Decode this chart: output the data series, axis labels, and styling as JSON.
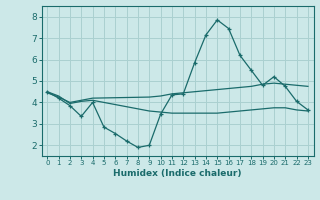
{
  "xlabel": "Humidex (Indice chaleur)",
  "ylabel": "",
  "background_color": "#cce8e8",
  "grid_color": "#aad0d0",
  "line_color": "#1a6b6b",
  "xlim": [
    -0.5,
    23.5
  ],
  "ylim": [
    1.5,
    8.5
  ],
  "yticks": [
    2,
    3,
    4,
    5,
    6,
    7,
    8
  ],
  "xticks": [
    0,
    1,
    2,
    3,
    4,
    5,
    6,
    7,
    8,
    9,
    10,
    11,
    12,
    13,
    14,
    15,
    16,
    17,
    18,
    19,
    20,
    21,
    22,
    23
  ],
  "line1_x": [
    0,
    1,
    2,
    3,
    4,
    5,
    6,
    7,
    8,
    9,
    10,
    11,
    12,
    13,
    14,
    15,
    16,
    17,
    18,
    19,
    20,
    21,
    22,
    23
  ],
  "line1_y": [
    4.5,
    4.2,
    3.85,
    3.35,
    4.0,
    2.85,
    2.55,
    2.2,
    1.9,
    2.0,
    3.45,
    4.35,
    4.4,
    5.85,
    7.15,
    7.85,
    7.45,
    6.2,
    5.5,
    4.8,
    5.2,
    4.75,
    4.05,
    3.65
  ],
  "line2_x": [
    0,
    1,
    2,
    3,
    4,
    9,
    10,
    11,
    12,
    13,
    14,
    15,
    16,
    17,
    18,
    19,
    20,
    21,
    22,
    23
  ],
  "line2_y": [
    4.5,
    4.3,
    3.95,
    4.05,
    4.1,
    3.6,
    3.55,
    3.5,
    3.5,
    3.5,
    3.5,
    3.5,
    3.55,
    3.6,
    3.65,
    3.7,
    3.75,
    3.75,
    3.65,
    3.6
  ],
  "line3_x": [
    0,
    1,
    2,
    3,
    4,
    9,
    10,
    11,
    12,
    13,
    14,
    15,
    16,
    17,
    18,
    19,
    20,
    21,
    22,
    23
  ],
  "line3_y": [
    4.45,
    4.25,
    4.0,
    4.1,
    4.2,
    4.25,
    4.3,
    4.4,
    4.45,
    4.5,
    4.55,
    4.6,
    4.65,
    4.7,
    4.75,
    4.85,
    4.9,
    4.85,
    4.8,
    4.75
  ]
}
